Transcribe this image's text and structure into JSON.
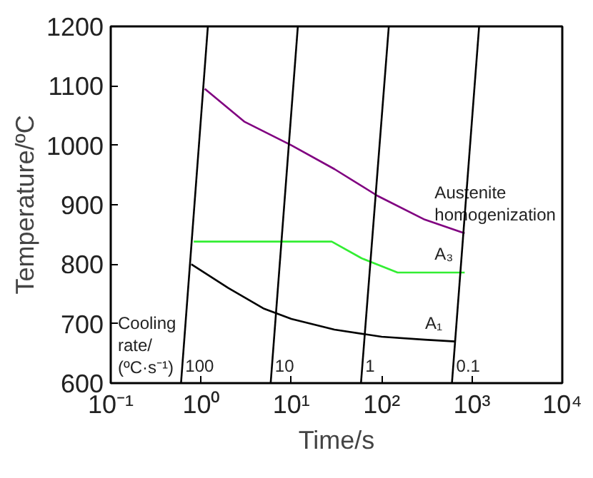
{
  "chart_data": {
    "type": "line",
    "xlabel": "Time/s",
    "ylabel": "Temperature/ºC",
    "log": "x",
    "grid": false,
    "xlim": [
      0.1,
      10000
    ],
    "ylim": [
      600,
      1200
    ],
    "xticks": [
      {
        "value": 0.1,
        "label": "10⁻¹"
      },
      {
        "value": 1,
        "label": "10⁰"
      },
      {
        "value": 10,
        "label": "10¹"
      },
      {
        "value": 100,
        "label": "10²"
      },
      {
        "value": 1000,
        "label": "10³"
      },
      {
        "value": 10000,
        "label": "10⁴"
      }
    ],
    "yticks": [
      600,
      700,
      800,
      900,
      1000,
      1100,
      1200
    ],
    "series": [
      {
        "name": "Austenite\nhomogenization",
        "color": "#800080",
        "x": [
          1.1,
          3,
          10,
          30,
          90,
          300,
          830
        ],
        "values": [
          1095,
          1040,
          1000,
          960,
          915,
          875,
          852
        ]
      },
      {
        "name": "A₃",
        "color": "#33ee33",
        "x": [
          0.83,
          28,
          60,
          150,
          830
        ],
        "values": [
          838,
          838,
          810,
          786,
          786
        ]
      },
      {
        "name": "A₁",
        "color": "#000000",
        "x": [
          0.78,
          2,
          5,
          10,
          30,
          100,
          300,
          650
        ],
        "values": [
          800,
          760,
          725,
          708,
          690,
          678,
          673,
          670
        ]
      },
      {
        "name": "100",
        "color": "#000000",
        "x": [
          0.6,
          1.19
        ],
        "values": [
          600,
          1200
        ]
      },
      {
        "name": "10",
        "color": "#000000",
        "x": [
          5.9,
          11.8
        ],
        "values": [
          600,
          1200
        ]
      },
      {
        "name": "1",
        "color": "#000000",
        "x": [
          59,
          120
        ],
        "values": [
          600,
          1200
        ]
      },
      {
        "name": "0.1",
        "color": "#000000",
        "x": [
          600,
          1200
        ],
        "values": [
          600,
          1200
        ]
      }
    ],
    "annotations": [
      "Cooling\nrate/\n(ºC·s⁻¹)"
    ]
  }
}
